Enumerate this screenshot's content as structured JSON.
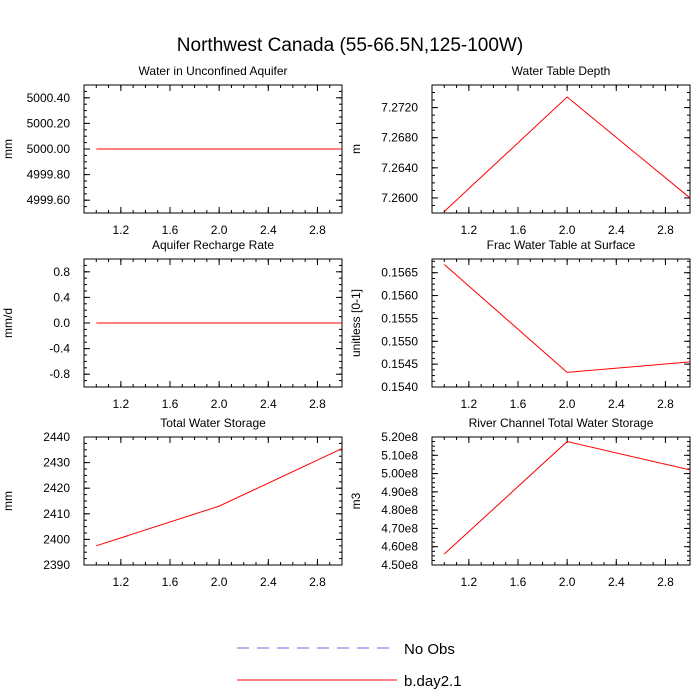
{
  "figure": {
    "title": "Northwest Canada (55-66.5N,125-100W)",
    "legend": [
      {
        "label": "No Obs",
        "color": "#6a6ad8",
        "style": "dashed"
      },
      {
        "label": "b.day2.1",
        "color": "#ff0000",
        "style": "solid"
      }
    ]
  },
  "chart_data": [
    {
      "type": "line",
      "title": "Water in Unconfined Aquifer",
      "ylabel": "mm",
      "xlabel": "",
      "x": [
        1,
        2,
        3
      ],
      "series": [
        {
          "name": "b.day2.1",
          "values": [
            5000.0,
            5000.0,
            5000.0
          ]
        }
      ],
      "xlim": [
        0.9,
        3.0
      ],
      "ylim": [
        4999.5,
        5000.5
      ],
      "xticks": [
        "1.2",
        "1.6",
        "2.0",
        "2.4",
        "2.8"
      ],
      "yticks": [
        "4999.60",
        "4999.80",
        "5000.00",
        "5000.20",
        "5000.40"
      ],
      "ytick_side": "left"
    },
    {
      "type": "line",
      "title": "Water Table Depth",
      "ylabel": "m",
      "xlabel": "",
      "x": [
        1,
        2,
        3
      ],
      "series": [
        {
          "name": "b.day2.1",
          "values": [
            7.2582,
            7.2734,
            7.26
          ]
        }
      ],
      "xlim": [
        0.9,
        3.0
      ],
      "ylim": [
        7.258,
        7.275
      ],
      "xticks": [
        "1.2",
        "1.6",
        "2.0",
        "2.4",
        "2.8"
      ],
      "yticks": [
        "7.2600",
        "7.2640",
        "7.2680",
        "7.2720"
      ],
      "ytick_side": "left"
    },
    {
      "type": "line",
      "title": "Aquifer Recharge Rate",
      "ylabel": "mm/d",
      "xlabel": "",
      "x": [
        1,
        2,
        3
      ],
      "series": [
        {
          "name": "b.day2.1",
          "values": [
            0.0,
            0.0,
            0.0
          ]
        }
      ],
      "xlim": [
        0.9,
        3.0
      ],
      "ylim": [
        -1.0,
        1.0
      ],
      "xticks": [
        "1.2",
        "1.6",
        "2.0",
        "2.4",
        "2.8"
      ],
      "yticks": [
        "-0.8",
        "-0.4",
        "0.0",
        "0.4",
        "0.8"
      ],
      "ytick_side": "left"
    },
    {
      "type": "line",
      "title": "Frac Water Table at Surface",
      "ylabel": "unitless [0-1]",
      "xlabel": "",
      "x": [
        1,
        2,
        3
      ],
      "series": [
        {
          "name": "b.day2.1",
          "values": [
            0.15668,
            0.15432,
            0.15455
          ]
        }
      ],
      "xlim": [
        0.9,
        3.0
      ],
      "ylim": [
        0.154,
        0.1568
      ],
      "xticks": [
        "1.2",
        "1.6",
        "2.0",
        "2.4",
        "2.8"
      ],
      "yticks": [
        "0.1540",
        "0.1545",
        "0.1550",
        "0.1555",
        "0.1560",
        "0.1565"
      ],
      "ytick_side": "left"
    },
    {
      "type": "line",
      "title": "Total Water Storage",
      "ylabel": "mm",
      "xlabel": "",
      "x": [
        1,
        2,
        3
      ],
      "series": [
        {
          "name": "b.day2.1",
          "values": [
            2397.5,
            2413.0,
            2435.5
          ]
        }
      ],
      "xlim": [
        0.9,
        3.0
      ],
      "ylim": [
        2390,
        2440
      ],
      "xticks": [
        "1.2",
        "1.6",
        "2.0",
        "2.4",
        "2.8"
      ],
      "yticks": [
        "2390",
        "2400",
        "2410",
        "2420",
        "2430",
        "2440"
      ],
      "ytick_side": "left"
    },
    {
      "type": "line",
      "title": "River Channel Total Water Storage",
      "ylabel": "m3",
      "xlabel": "",
      "x": [
        1,
        2,
        3
      ],
      "series": [
        {
          "name": "b.day2.1",
          "values": [
            456000000,
            517500000,
            502000000
          ]
        }
      ],
      "xlim": [
        0.9,
        3.0
      ],
      "ylim": [
        450000000,
        520000000
      ],
      "xticks": [
        "1.2",
        "1.6",
        "2.0",
        "2.4",
        "2.8"
      ],
      "yticks": [
        "4.50e8",
        "4.60e8",
        "4.70e8",
        "4.80e8",
        "4.90e8",
        "5.00e8",
        "5.10e8",
        "5.20e8"
      ],
      "ytick_side": "left"
    }
  ]
}
